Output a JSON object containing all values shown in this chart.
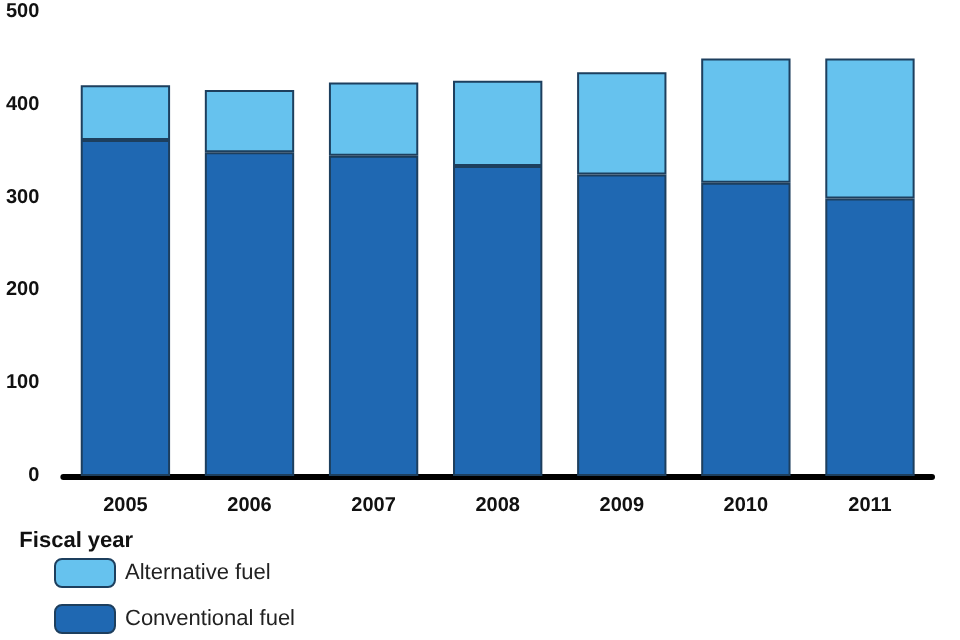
{
  "chart_data": {
    "type": "bar",
    "xlabel": "Fiscal year",
    "categories": [
      "2005",
      "2006",
      "2007",
      "2008",
      "2009",
      "2010",
      "2011"
    ],
    "series": [
      {
        "name": "Conventional fuel",
        "color": "#1f68b2",
        "values": [
          362,
          349,
          345,
          334,
          325,
          316,
          299
        ]
      },
      {
        "name": "Alternative fuel",
        "color": "#66c2ee",
        "values": [
          59,
          67,
          79,
          92,
          110,
          134,
          151
        ]
      }
    ],
    "stacked": true,
    "ylim": [
      0,
      500
    ],
    "yticks": [
      0,
      100,
      200,
      300,
      400,
      500
    ],
    "grid": false,
    "legend": "bottom left"
  }
}
